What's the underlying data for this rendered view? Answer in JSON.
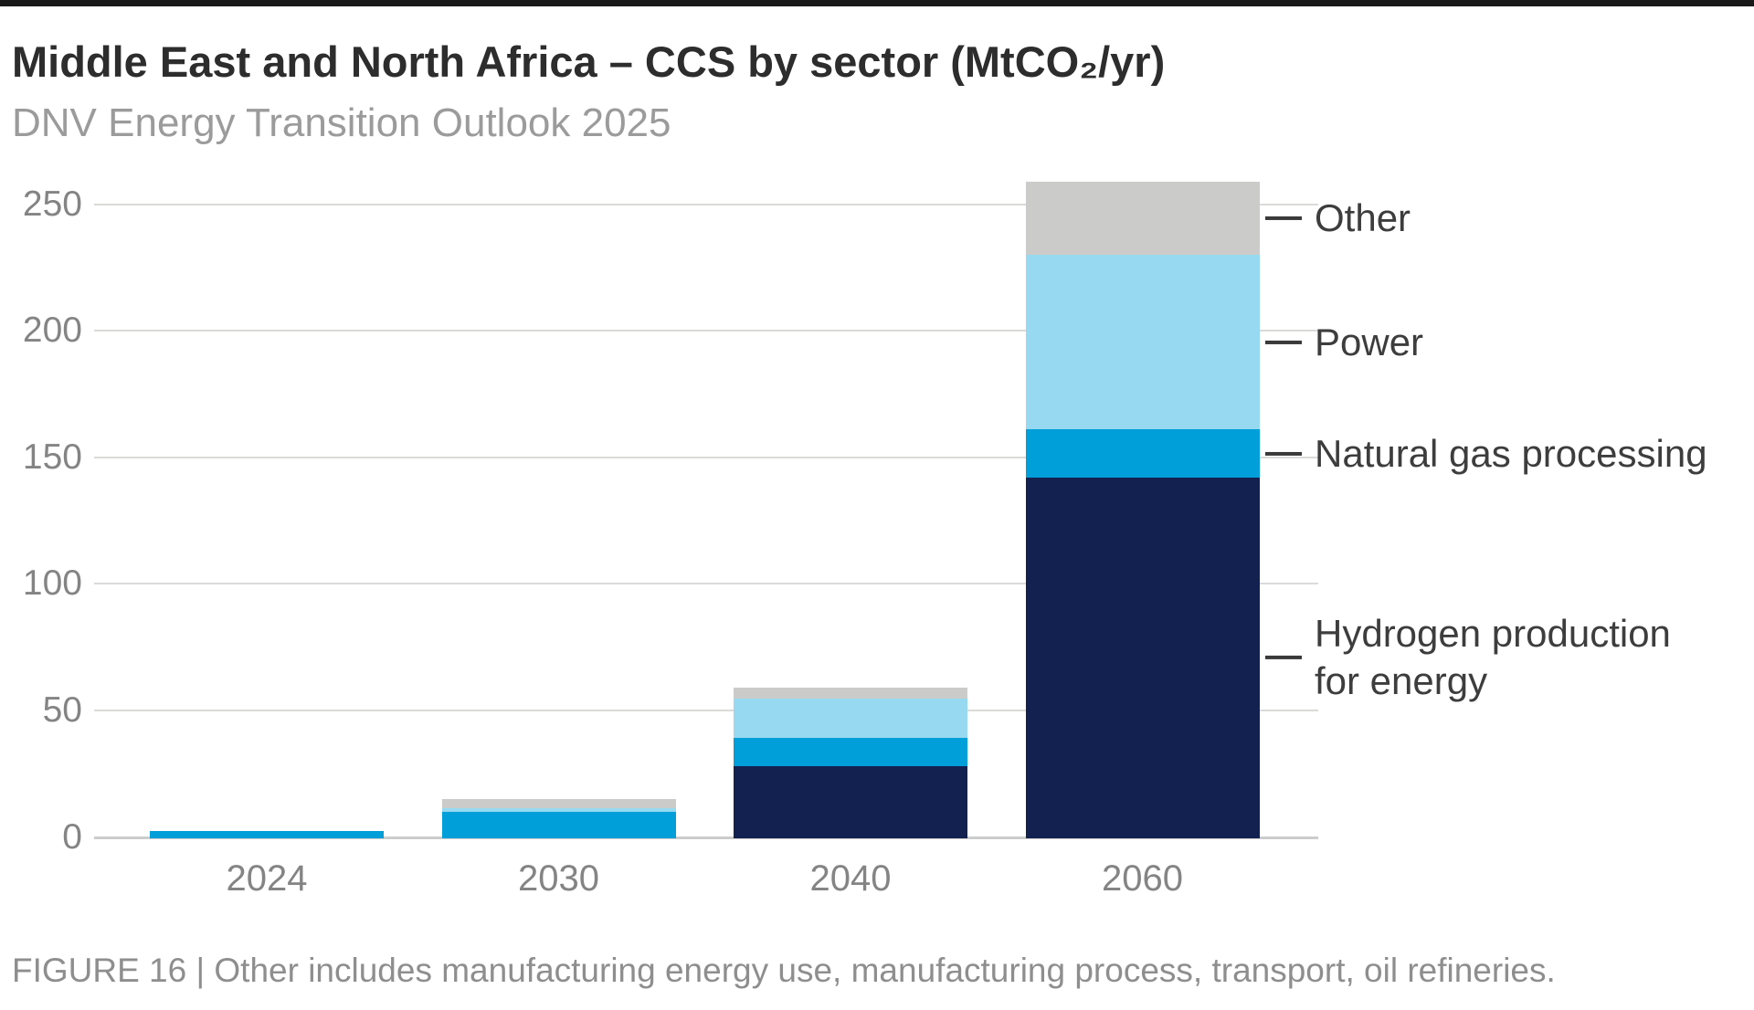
{
  "header": {
    "title": "Middle East and North Africa – CCS by sector (MtCO₂/yr)",
    "subtitle": "DNV Energy Transition Outlook 2025"
  },
  "colors": {
    "hydrogen_navy": "#122150",
    "natural_gas_cyan": "#009fd9",
    "power_sky": "#97d9f0",
    "other_gray": "#cbcbca",
    "gridline": "#dadad9",
    "axis_text": "#848484",
    "legend_text": "#3d3d3d",
    "title_text": "#2d2d2d",
    "subtitle_text": "#9b9b9b",
    "caption_text": "#8e8e8e",
    "top_rule": "#191919"
  },
  "chart_data": {
    "type": "bar",
    "stacked": true,
    "title": "Middle East and North Africa – CCS by sector (MtCO₂/yr)",
    "subtitle": "DNV Energy Transition Outlook 2025",
    "unit": "MtCO₂/yr",
    "categories": [
      "2024",
      "2030",
      "2040",
      "2060"
    ],
    "series": [
      {
        "name": "Hydrogen production for energy",
        "color": "#122150",
        "values": [
          0,
          0,
          28,
          142
        ]
      },
      {
        "name": "Natural gas processing",
        "color": "#009fd9",
        "values": [
          2.5,
          10,
          11,
          19
        ]
      },
      {
        "name": "Power",
        "color": "#97d9f0",
        "values": [
          0,
          1.4,
          15.5,
          69
        ]
      },
      {
        "name": "Other",
        "color": "#cbcbca",
        "values": [
          0,
          3.6,
          4.5,
          29
        ]
      }
    ],
    "totals": [
      2.5,
      15,
      59,
      259
    ],
    "xlabel": "",
    "ylabel": "",
    "ylim": [
      0,
      259
    ],
    "yticks": [
      0,
      50,
      100,
      150,
      200,
      250
    ],
    "grid": "horizontal",
    "legend_position": "right-callout"
  },
  "legend": {
    "entries": [
      {
        "label": "Other",
        "series_index": 3
      },
      {
        "label": "Power",
        "series_index": 2
      },
      {
        "label": "Natural gas processing",
        "series_index": 1
      },
      {
        "label": "Hydrogen production\nfor energy",
        "series_index": 0
      }
    ]
  },
  "footer": {
    "caption": "FIGURE 16 | Other includes manufacturing energy use, manufacturing process, transport, oil refineries."
  }
}
